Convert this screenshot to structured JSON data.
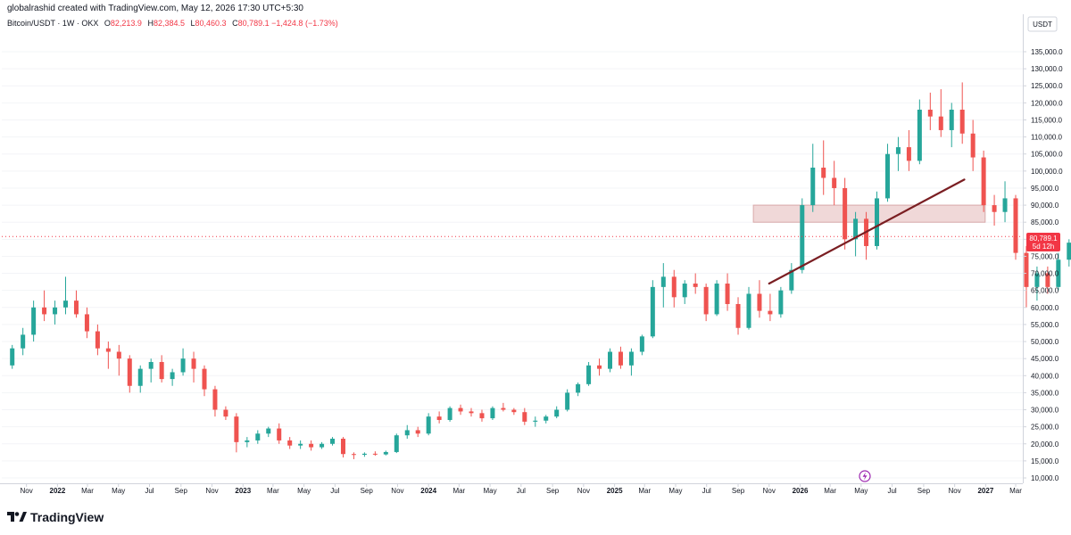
{
  "header": {
    "attribution": "globalrashid created with TradingView.com, May 12, 2026 17:30 UTC+5:30",
    "symbol": "Bitcoin/USDT · 1W · OKX",
    "open_label": "O",
    "open": "82,213.9",
    "high_label": "H",
    "high": "82,384.5",
    "low_label": "L",
    "low": "80,460.3",
    "close_label": "C",
    "close": "80,789.1",
    "change": "−1,424.8 (−1.73%)"
  },
  "brand": {
    "name": "TradingView",
    "icon": "tradingview-logo-icon"
  },
  "colors": {
    "up": "#26a69a",
    "down": "#ef5350",
    "trendline": "#7a1e22",
    "zone_fill": "#e9c8c8",
    "zone_stroke": "#d9a9a9",
    "price_tag": "#f23645",
    "lightning": "#9c27b0"
  },
  "price_tag": {
    "value": "80,789.1",
    "countdown": "5d 12h"
  },
  "lightning_icon": "lightning-icon",
  "chart_data": {
    "type": "candlestick",
    "title": "Bitcoin/USDT · 1W · OKX",
    "currency": "USDT",
    "y_ticks": [
      10000,
      15000,
      20000,
      25000,
      30000,
      35000,
      40000,
      45000,
      50000,
      55000,
      60000,
      65000,
      70000,
      75000,
      80000,
      85000,
      90000,
      95000,
      100000,
      105000,
      110000,
      115000,
      120000,
      125000,
      130000,
      135000
    ],
    "y_tick_labels": [
      "10,000.0",
      "15,000.0",
      "20,000.0",
      "25,000.0",
      "30,000.0",
      "35,000.0",
      "40,000.0",
      "45,000.0",
      "50,000.0",
      "55,000.0",
      "60,000.0",
      "65,000.0",
      "70,000.0",
      "75,000.0",
      "80,000.0",
      "85,000.0",
      "90,000.0",
      "95,000.0",
      "100,000.0",
      "105,000.0",
      "110,000.0",
      "115,000.0",
      "120,000.0",
      "125,000.0",
      "130,000.0",
      "135,000.0"
    ],
    "x_ticks": [
      {
        "label": "Nov",
        "date": "2021-11-01"
      },
      {
        "label": "2022",
        "date": "2022-01-01"
      },
      {
        "label": "Mar",
        "date": "2022-03-01"
      },
      {
        "label": "May",
        "date": "2022-05-01"
      },
      {
        "label": "Jul",
        "date": "2022-07-01"
      },
      {
        "label": "Sep",
        "date": "2022-09-01"
      },
      {
        "label": "Nov",
        "date": "2022-11-01"
      },
      {
        "label": "2023",
        "date": "2023-01-01"
      },
      {
        "label": "Mar",
        "date": "2023-03-01"
      },
      {
        "label": "May",
        "date": "2023-05-01"
      },
      {
        "label": "Jul",
        "date": "2023-07-01"
      },
      {
        "label": "Sep",
        "date": "2023-09-01"
      },
      {
        "label": "Nov",
        "date": "2023-11-01"
      },
      {
        "label": "2024",
        "date": "2024-01-01"
      },
      {
        "label": "Mar",
        "date": "2024-03-01"
      },
      {
        "label": "May",
        "date": "2024-05-01"
      },
      {
        "label": "Jul",
        "date": "2024-07-01"
      },
      {
        "label": "Sep",
        "date": "2024-09-01"
      },
      {
        "label": "Nov",
        "date": "2024-11-01"
      },
      {
        "label": "2025",
        "date": "2025-01-01"
      },
      {
        "label": "Mar",
        "date": "2025-03-01"
      },
      {
        "label": "May",
        "date": "2025-05-01"
      },
      {
        "label": "Jul",
        "date": "2025-07-01"
      },
      {
        "label": "Sep",
        "date": "2025-09-01"
      },
      {
        "label": "Nov",
        "date": "2025-11-01"
      },
      {
        "label": "2026",
        "date": "2026-01-01"
      },
      {
        "label": "Mar",
        "date": "2026-03-01"
      },
      {
        "label": "May",
        "date": "2026-05-01"
      },
      {
        "label": "Jul",
        "date": "2026-07-01"
      },
      {
        "label": "Sep",
        "date": "2026-09-01"
      },
      {
        "label": "Nov",
        "date": "2026-11-01"
      },
      {
        "label": "2027",
        "date": "2027-01-01"
      },
      {
        "label": "Mar",
        "date": "2027-03-01"
      }
    ],
    "x_range": [
      "2021-10-01",
      "2027-03-01"
    ],
    "y_range": [
      10000,
      140000
    ],
    "ohlc": [
      [
        "2021-10-04",
        43000,
        49000,
        42000,
        48000
      ],
      [
        "2021-10-25",
        48000,
        54000,
        46000,
        52000
      ],
      [
        "2021-11-15",
        52000,
        62000,
        50000,
        60000
      ],
      [
        "2021-12-06",
        60000,
        65000,
        56000,
        58000
      ],
      [
        "2021-12-27",
        58000,
        62000,
        55000,
        60000
      ],
      [
        "2022-01-17",
        60000,
        69000,
        58000,
        62000
      ],
      [
        "2022-02-07",
        62000,
        65000,
        57000,
        58000
      ],
      [
        "2022-02-28",
        58000,
        60000,
        51000,
        53000
      ],
      [
        "2022-03-21",
        53000,
        55000,
        46000,
        48000
      ],
      [
        "2022-04-11",
        48000,
        50000,
        42000,
        47000
      ],
      [
        "2022-05-02",
        47000,
        49000,
        40000,
        45000
      ],
      [
        "2022-05-23",
        45000,
        46000,
        35000,
        37000
      ],
      [
        "2022-06-13",
        37000,
        43000,
        35000,
        42000
      ],
      [
        "2022-07-04",
        42000,
        45000,
        38000,
        44000
      ],
      [
        "2022-07-25",
        44000,
        46000,
        38000,
        39000
      ],
      [
        "2022-08-15",
        39000,
        42000,
        37000,
        41000
      ],
      [
        "2022-09-05",
        41000,
        48000,
        40000,
        45000
      ],
      [
        "2022-09-26",
        45000,
        47000,
        38000,
        42000
      ],
      [
        "2022-10-17",
        42000,
        43000,
        34000,
        36000
      ],
      [
        "2022-11-07",
        36000,
        37000,
        28000,
        30000
      ],
      [
        "2022-11-28",
        30000,
        31000,
        27000,
        28000
      ],
      [
        "2022-12-19",
        28000,
        29000,
        17500,
        20500
      ],
      [
        "2023-01-09",
        20500,
        22000,
        19000,
        21000
      ],
      [
        "2023-01-30",
        21000,
        24000,
        20000,
        23000
      ],
      [
        "2023-02-20",
        23000,
        25000,
        22000,
        24500
      ],
      [
        "2023-03-13",
        24500,
        26000,
        20000,
        21000
      ],
      [
        "2023-04-03",
        21000,
        22000,
        18500,
        19500
      ],
      [
        "2023-04-24",
        19500,
        21000,
        18500,
        20000
      ],
      [
        "2023-05-15",
        20000,
        21000,
        18000,
        19000
      ],
      [
        "2023-06-05",
        19000,
        20500,
        18500,
        20000
      ],
      [
        "2023-06-26",
        20000,
        22000,
        19500,
        21500
      ],
      [
        "2023-07-17",
        21500,
        22000,
        16000,
        17000
      ],
      [
        "2023-08-07",
        17000,
        17500,
        15500,
        16800
      ],
      [
        "2023-08-28",
        16800,
        17500,
        16200,
        17100
      ],
      [
        "2023-09-18",
        17100,
        17800,
        16500,
        16900
      ],
      [
        "2023-10-09",
        16900,
        18000,
        16600,
        17600
      ],
      [
        "2023-10-30",
        17600,
        23000,
        17300,
        22500
      ],
      [
        "2023-11-20",
        22500,
        25500,
        21500,
        24000
      ],
      [
        "2023-12-11",
        24000,
        25000,
        22000,
        23000
      ],
      [
        "2024-01-01",
        23000,
        29000,
        22500,
        28000
      ],
      [
        "2024-01-22",
        28000,
        29500,
        26000,
        27000
      ],
      [
        "2024-02-12",
        27000,
        31000,
        26500,
        30500
      ],
      [
        "2024-03-04",
        30500,
        31500,
        28500,
        29500
      ],
      [
        "2024-03-25",
        29500,
        30500,
        28000,
        29000
      ],
      [
        "2024-04-15",
        29000,
        30000,
        26500,
        27500
      ],
      [
        "2024-05-06",
        27500,
        31000,
        27000,
        30500
      ],
      [
        "2024-05-27",
        30500,
        32000,
        29500,
        30000
      ],
      [
        "2024-06-17",
        30000,
        30500,
        28500,
        29300
      ],
      [
        "2024-07-08",
        29300,
        30500,
        25500,
        26500
      ],
      [
        "2024-07-29",
        26500,
        28000,
        25000,
        26800
      ],
      [
        "2024-08-19",
        26800,
        28500,
        26000,
        28000
      ],
      [
        "2024-09-09",
        28000,
        31000,
        27500,
        30000
      ],
      [
        "2024-09-30",
        30000,
        36000,
        29500,
        35000
      ],
      [
        "2024-10-21",
        35000,
        38000,
        34000,
        37500
      ],
      [
        "2024-11-11",
        37500,
        44000,
        37000,
        43000
      ],
      [
        "2024-12-02",
        43000,
        45000,
        40000,
        42000
      ],
      [
        "2024-12-23",
        42000,
        48000,
        41000,
        47000
      ],
      [
        "2025-01-13",
        47000,
        48500,
        42000,
        43000
      ],
      [
        "2025-02-03",
        43000,
        48000,
        40000,
        47000
      ],
      [
        "2025-02-24",
        47000,
        52000,
        46000,
        51500
      ],
      [
        "2025-03-17",
        51500,
        68000,
        51000,
        66000
      ],
      [
        "2025-04-07",
        66000,
        73000,
        60000,
        69000
      ],
      [
        "2025-04-28",
        69000,
        71000,
        60000,
        63000
      ],
      [
        "2025-05-19",
        63000,
        68000,
        61000,
        67000
      ],
      [
        "2025-06-09",
        67000,
        70000,
        64000,
        66000
      ],
      [
        "2025-06-30",
        66000,
        67000,
        56000,
        58000
      ],
      [
        "2025-07-21",
        58000,
        68000,
        57500,
        67000
      ],
      [
        "2025-08-11",
        67000,
        70000,
        59000,
        61000
      ],
      [
        "2025-09-01",
        61000,
        63000,
        52000,
        54000
      ],
      [
        "2025-09-22",
        54000,
        66000,
        53500,
        64000
      ],
      [
        "2025-10-13",
        64000,
        68000,
        57000,
        59000
      ],
      [
        "2025-11-03",
        59000,
        64000,
        56000,
        58000
      ],
      [
        "2025-11-24",
        58000,
        66000,
        57000,
        65000
      ],
      [
        "2025-12-15",
        65000,
        73000,
        64000,
        71000
      ],
      [
        "2026-01-05",
        71000,
        92000,
        70000,
        90000
      ],
      [
        "2026-01-26",
        90000,
        108000,
        88000,
        101000
      ],
      [
        "2026-02-16",
        101000,
        109000,
        93000,
        98000
      ],
      [
        "2026-03-09",
        98000,
        103000,
        90000,
        95000
      ],
      [
        "2026-03-30",
        95000,
        98000,
        77000,
        80000
      ],
      [
        "2026-04-20",
        80000,
        88000,
        75000,
        86000
      ],
      [
        "2026-05-11",
        86000,
        88000,
        74000,
        78000
      ],
      [
        "2026-06-01",
        78000,
        94000,
        77000,
        92000
      ],
      [
        "2026-06-22",
        92000,
        108000,
        91000,
        105000
      ],
      [
        "2026-07-13",
        105000,
        110000,
        100000,
        107000
      ],
      [
        "2026-08-03",
        107000,
        112000,
        100000,
        103000
      ],
      [
        "2026-08-24",
        103000,
        121000,
        102000,
        118000
      ],
      [
        "2026-09-14",
        118000,
        123000,
        112000,
        116000
      ],
      [
        "2026-10-05",
        116000,
        124000,
        110000,
        112000
      ],
      [
        "2026-10-26",
        112000,
        120000,
        107000,
        118000
      ],
      [
        "2026-11-16",
        118000,
        126000,
        108000,
        111000
      ],
      [
        "2026-12-07",
        111000,
        115000,
        100000,
        104000
      ],
      [
        "2026-12-28",
        104000,
        106000,
        88000,
        90000
      ],
      [
        "2027-01-18",
        90000,
        93000,
        84000,
        88000
      ],
      [
        "2027-02-08",
        88000,
        97000,
        85000,
        92000
      ],
      [
        "2027-03-01",
        92000,
        93000,
        74000,
        76000
      ],
      [
        "2027-03-22",
        76000,
        78000,
        60000,
        66000
      ],
      [
        "2027-04-12",
        66000,
        72000,
        62000,
        70000
      ],
      [
        "2027-05-03",
        70000,
        72000,
        64000,
        66000
      ],
      [
        "2027-05-24",
        66000,
        76000,
        65000,
        74000
      ],
      [
        "2027-06-14",
        74000,
        80000,
        72000,
        79000
      ],
      [
        "2027-07-05",
        79000,
        84000,
        77000,
        82213.9
      ],
      [
        "2027-07-12",
        82213.9,
        82384.5,
        80460.3,
        80789.1
      ]
    ],
    "annotations": {
      "trendline": {
        "from": [
          "2025-11-01",
          67000
        ],
        "to": [
          "2026-11-20",
          97500
        ]
      },
      "zone": {
        "from": "2025-10-01",
        "to": "2026-12-31",
        "low": 85000,
        "high": 90000
      },
      "last_price_line": 80789.1
    }
  }
}
